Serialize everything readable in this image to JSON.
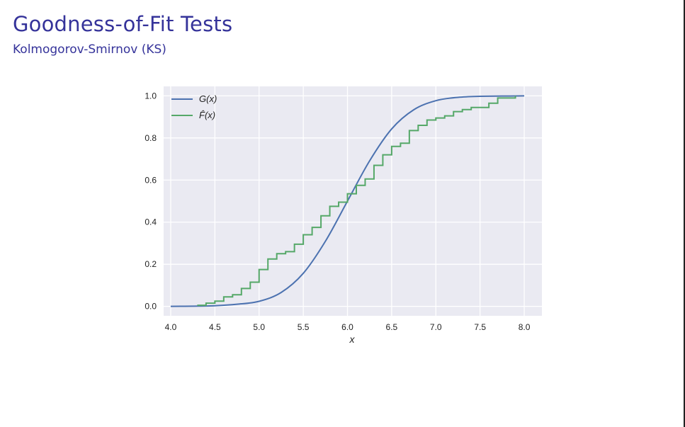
{
  "slide": {
    "title": "Goodness-of-Fit Tests",
    "subtitle": "Kolmogorov-Smirnov (KS)"
  },
  "chart_data": {
    "type": "line",
    "title": "",
    "xlabel": "x",
    "ylabel": "",
    "xlim": [
      3.92,
      8.2
    ],
    "ylim": [
      -0.045,
      1.045
    ],
    "xticks": [
      "4.0",
      "4.5",
      "5.0",
      "5.5",
      "6.0",
      "6.5",
      "7.0",
      "7.5",
      "8.0"
    ],
    "yticks": [
      "0.0",
      "0.2",
      "0.4",
      "0.6",
      "0.8",
      "1.0"
    ],
    "grid": true,
    "legend_position": "top-left",
    "series": [
      {
        "name": "G(x)",
        "color": "#4c72b0",
        "kind": "smooth",
        "x": [
          4.0,
          4.25,
          4.5,
          4.75,
          5.0,
          5.25,
          5.5,
          5.75,
          6.0,
          6.25,
          6.5,
          6.75,
          7.0,
          7.25,
          7.5,
          7.75,
          8.0
        ],
        "y": [
          0.0,
          0.001,
          0.003,
          0.01,
          0.024,
          0.066,
          0.157,
          0.309,
          0.5,
          0.691,
          0.843,
          0.934,
          0.977,
          0.993,
          0.998,
          0.999,
          1.0
        ]
      },
      {
        "name": "F̂(x)",
        "color": "#55a868",
        "kind": "step",
        "x": [
          4.3,
          4.4,
          4.5,
          4.6,
          4.7,
          4.8,
          4.9,
          5.0,
          5.1,
          5.2,
          5.3,
          5.4,
          5.5,
          5.6,
          5.7,
          5.8,
          5.9,
          6.0,
          6.1,
          6.2,
          6.3,
          6.4,
          6.5,
          6.6,
          6.7,
          6.8,
          6.9,
          7.0,
          7.1,
          7.2,
          7.3,
          7.4,
          7.6,
          7.7,
          7.9
        ],
        "y": [
          0.005,
          0.015,
          0.025,
          0.045,
          0.055,
          0.085,
          0.115,
          0.175,
          0.225,
          0.25,
          0.26,
          0.295,
          0.34,
          0.375,
          0.43,
          0.475,
          0.495,
          0.535,
          0.575,
          0.605,
          0.67,
          0.72,
          0.76,
          0.775,
          0.835,
          0.86,
          0.885,
          0.895,
          0.905,
          0.925,
          0.935,
          0.945,
          0.965,
          0.99,
          1.0
        ]
      }
    ]
  }
}
